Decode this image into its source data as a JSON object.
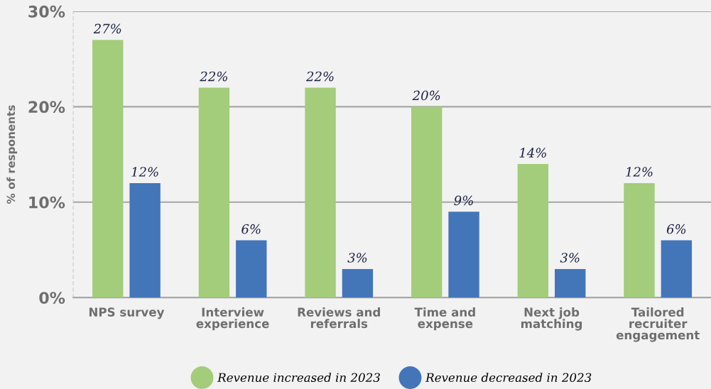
{
  "chart_data": {
    "type": "bar",
    "ylabel": "% of responents",
    "categories": [
      "NPS survey",
      "Interview\nexperience",
      "Reviews and\nreferrals",
      "Time and\nexpense",
      "Next job\nmatching",
      "Tailored\nrecruiter\nengagement"
    ],
    "series": [
      {
        "name": "Revenue increased in 2023",
        "color": "#a3cd7a",
        "values": [
          27,
          22,
          22,
          20,
          14,
          12
        ],
        "value_labels": [
          "27%",
          "22%",
          "22%",
          "20%",
          "14%",
          "12%"
        ]
      },
      {
        "name": "Revenue decreased in 2023",
        "color": "#4375b9",
        "values": [
          12,
          6,
          3,
          9,
          3,
          6
        ],
        "value_labels": [
          "12%",
          "6%",
          "3%",
          "9%",
          "3%",
          "6%"
        ]
      }
    ],
    "ylim": [
      0,
      30
    ],
    "yticks": [
      {
        "value": 0,
        "label": "0%"
      },
      {
        "value": 10,
        "label": "10%"
      },
      {
        "value": 20,
        "label": "20%"
      },
      {
        "value": 30,
        "label": "30%"
      }
    ],
    "grid": "y",
    "legend": "bottom"
  }
}
